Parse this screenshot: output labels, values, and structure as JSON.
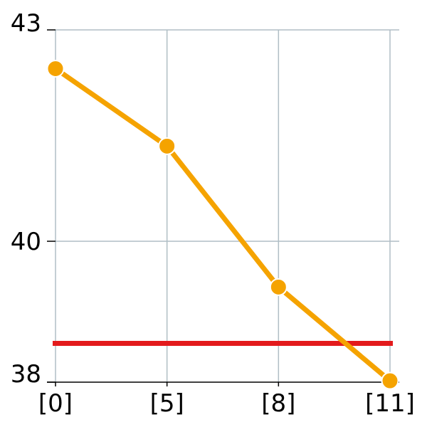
{
  "chart_data": {
    "type": "line",
    "categories": [
      "[0]",
      "[5]",
      "[8]",
      "[11]"
    ],
    "series": [
      {
        "values": [
          42.45,
          41.35,
          39.35,
          38.02
        ],
        "color": "#f5a300"
      }
    ],
    "reference_line": {
      "value": 38.55,
      "color": "#e31a1c"
    },
    "xlabel": "",
    "ylabel": "",
    "yticks": [
      "38",
      "40",
      "43"
    ],
    "ytick_values": [
      38,
      40,
      43
    ],
    "ylim": [
      38,
      43
    ],
    "grid": true
  }
}
